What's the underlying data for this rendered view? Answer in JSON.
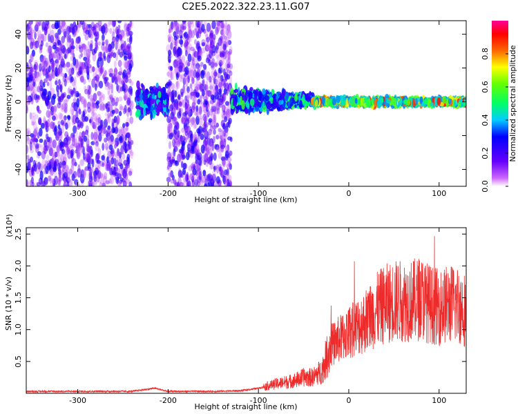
{
  "title": "C2E5.2022.322.23.11.G07",
  "colorbar": {
    "label": "Normalized spectral amplitude",
    "ticks": [
      "0.0",
      "0.2",
      "0.4",
      "0.6",
      "0.8"
    ]
  },
  "colors": {
    "snr_line": "#ee2b2b",
    "heatmap_low": "#d8b4ff",
    "heatmap_mid": "#6a00ff",
    "heatmap_high": "#ff1a1a"
  },
  "chart_data": [
    {
      "type": "heatmap",
      "xlabel": "Height of straight line (km)",
      "ylabel": "Frequency (Hz)",
      "xlim": [
        -357,
        130
      ],
      "ylim": [
        -50,
        48
      ],
      "xticks": [
        "-300",
        "-200",
        "-100",
        "0",
        "100"
      ],
      "yticks": [
        "-40",
        "-20",
        "0",
        "20",
        "40"
      ],
      "colorscale": "rainbow (violet to red)",
      "zrange": [
        0,
        1
      ],
      "regions": [
        {
          "x": [
            -357,
            -240
          ],
          "freq": [
            -50,
            48
          ],
          "amplitude": "scattered low (0.1-0.3)"
        },
        {
          "x": [
            -235,
            -200
          ],
          "freq": [
            -15,
            15
          ],
          "amplitude": "cluster up to 0.5"
        },
        {
          "x": [
            -200,
            -130
          ],
          "freq": [
            -50,
            48
          ],
          "amplitude": "scattered low (0.1-0.3)"
        },
        {
          "x": [
            -130,
            -40
          ],
          "freq": [
            -12,
            10
          ],
          "amplitude": "band 0.3-0.6"
        },
        {
          "x": [
            -40,
            130
          ],
          "freq": [
            -3,
            3
          ],
          "amplitude": "narrow band 0.5-0.9"
        }
      ]
    },
    {
      "type": "line",
      "xlabel": "Height of straight line (km)",
      "ylabel": "SNR (10 * v/v)",
      "yscale_label": "(x10⁴)",
      "xlim": [
        -357,
        130
      ],
      "ylim": [
        0,
        2.6
      ],
      "xticks": [
        "-300",
        "-200",
        "-100",
        "0",
        "100"
      ],
      "yticks": [
        "0.5",
        "1.0",
        "1.5",
        "2.0",
        "2.5"
      ],
      "series": [
        {
          "x": [
            -357,
            -300,
            -240,
            -215,
            -200,
            -150,
            -120,
            -100,
            -80,
            -60,
            -50,
            -40,
            -30,
            -20,
            -10,
            0,
            10,
            20,
            30,
            40,
            50,
            60,
            70,
            80,
            90,
            100,
            110,
            120,
            130
          ],
          "values": [
            0.03,
            0.03,
            0.03,
            0.08,
            0.03,
            0.03,
            0.04,
            0.08,
            0.15,
            0.2,
            0.25,
            0.25,
            0.35,
            0.75,
            0.85,
            0.95,
            1.05,
            1.15,
            1.3,
            1.4,
            1.45,
            1.45,
            1.45,
            1.5,
            1.4,
            1.35,
            1.4,
            1.4,
            1.3
          ]
        }
      ]
    }
  ]
}
